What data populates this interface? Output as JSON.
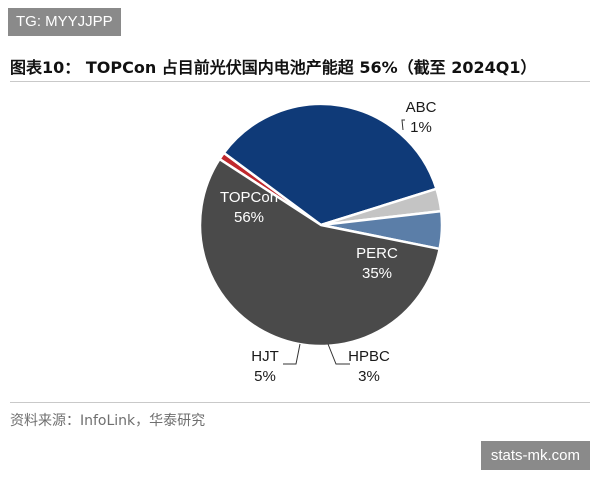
{
  "watermark_tag": "TG: MYYJJPP",
  "title": "图表10： TOPCon 占目前光伏国内电池产能超 56%（截至 2024Q1）",
  "source": "资料来源：InfoLink，华泰研究",
  "site_watermark": "stats-mk.com",
  "chart_data": {
    "type": "pie",
    "slices": [
      {
        "label": "ABC",
        "value": 1,
        "value_label": "1%",
        "color": "#c0282d"
      },
      {
        "label": "PERC",
        "value": 35,
        "value_label": "35%",
        "color": "#0f3a78"
      },
      {
        "label": "HPBC",
        "value": 3,
        "value_label": "3%",
        "color": "#c4c4c4"
      },
      {
        "label": "HJT",
        "value": 5,
        "value_label": "5%",
        "color": "#5b7ea8"
      },
      {
        "label": "TOPCon",
        "value": 56,
        "value_label": "56%",
        "color": "#4a4a4a"
      }
    ],
    "legend": "none"
  }
}
